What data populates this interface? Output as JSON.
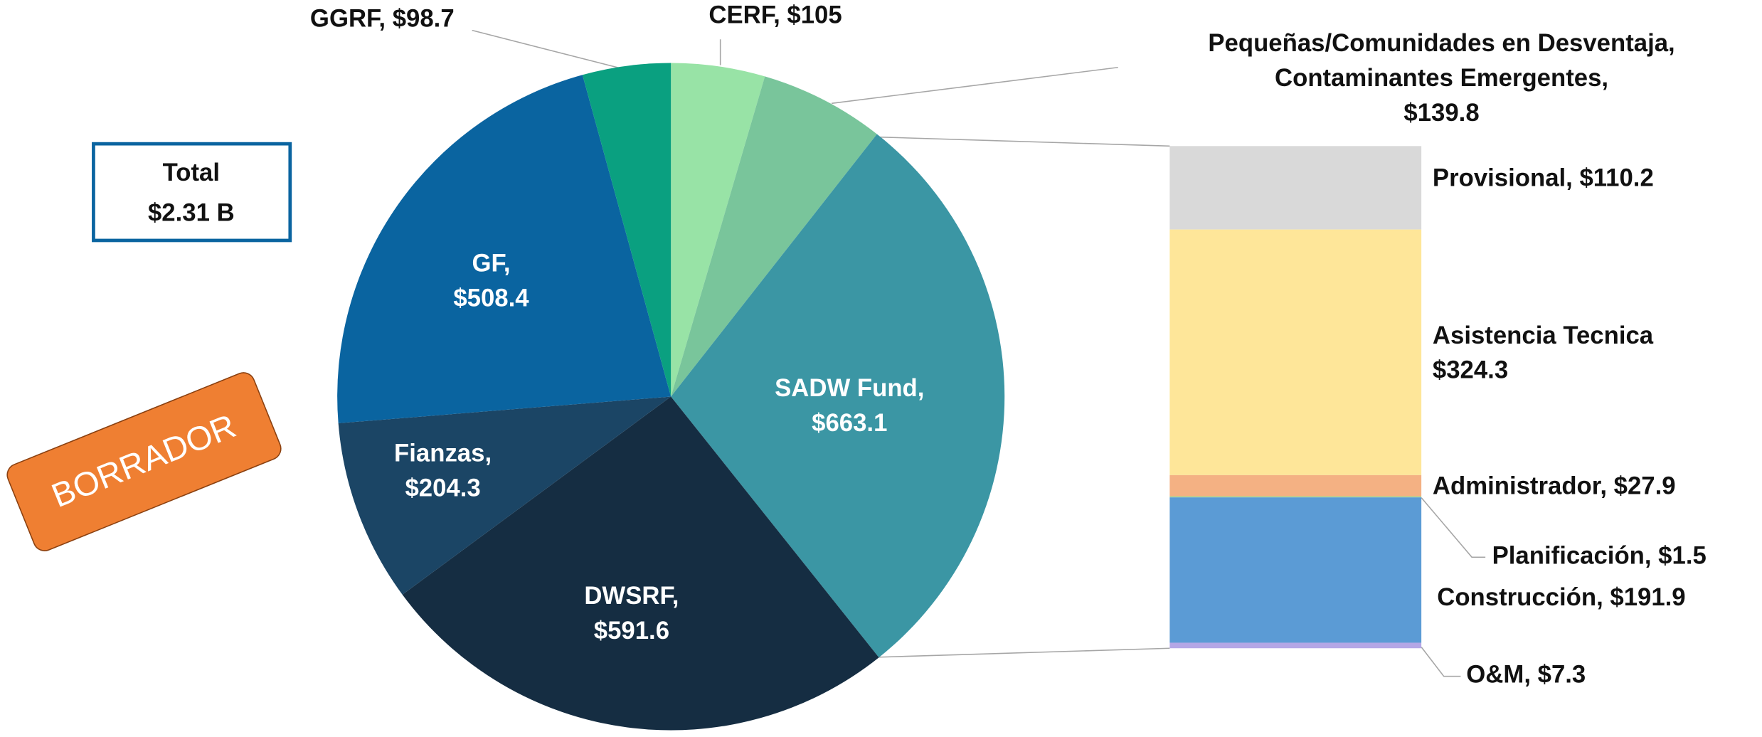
{
  "chart_data": {
    "type": "pie",
    "values": [
      105,
      139.8,
      663.1,
      591.6,
      204.3,
      508.4,
      98.7
    ],
    "value_labels": [
      "CERF, $105",
      "Pequeñas/Comunidades en Desventaja,\nContaminantes Emergentes,\n$139.8",
      "SADW Fund,\n$663.1",
      "DWSRF,\n$591.6",
      "Fianzas,\n$204.3",
      "GF,\n$508.4",
      "GGRF, $98.7"
    ],
    "colors": [
      "#98e3a6",
      "#79c59b",
      "#3b96a4",
      "#152d42",
      "#1b4565",
      "#0a64a0",
      "#0aa080"
    ],
    "breakdown": {
      "values": [
        110.2,
        324.3,
        27.9,
        1.5,
        191.9,
        7.3
      ],
      "value_labels": [
        "Provisional, $110.2",
        "Asistencia Tecnica\n$324.3",
        "Administrador, $27.9",
        "Planificación, $1.5",
        "Construcción, $191.9",
        "O&M, $7.3"
      ],
      "colors": [
        "#d9d9d9",
        "#fee699",
        "#f4b183",
        "#a9d18e",
        "#5b9bd5",
        "#b4a7e6"
      ]
    },
    "annotations": [
      "Total\n$2.31 B",
      "BORRADOR"
    ]
  }
}
